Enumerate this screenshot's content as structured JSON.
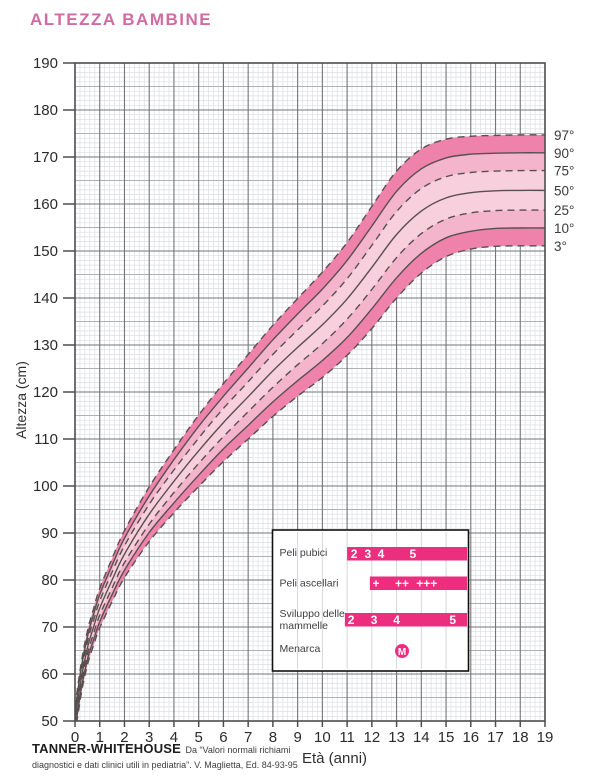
{
  "title": "ALTEZZA BAMBINE",
  "colors": {
    "title": "#d06ba3",
    "band_outer": "#ee82ab",
    "band_mid": "#f3b4cc",
    "band_inner": "#f8cfdd",
    "curve": "#58504f",
    "bar": "#eb2e7e",
    "grid_minor": "#dcdee2",
    "grid_medium": "#aeb1b7",
    "grid_major": "#737578",
    "axis": "#4c4d50",
    "tick_text": "#2b2b2b",
    "label_text": "#3f3f3f",
    "stage_text": "#ffffff"
  },
  "chart_data": {
    "type": "line",
    "title": "ALTEZZA BAMBINE",
    "xlabel": "Età (anni)",
    "ylabel": "Altezza (cm)",
    "xlim": [
      0,
      19
    ],
    "ylim": [
      50,
      190
    ],
    "grid": true,
    "x_ticks": [
      0,
      1,
      2,
      3,
      4,
      5,
      6,
      7,
      8,
      9,
      10,
      11,
      12,
      13,
      14,
      15,
      16,
      17,
      18,
      19
    ],
    "y_ticks": [
      50,
      60,
      70,
      80,
      90,
      100,
      110,
      120,
      130,
      140,
      150,
      160,
      170,
      180,
      190
    ],
    "x": [
      0,
      0.25,
      0.5,
      0.75,
      1,
      1.5,
      2,
      3,
      4,
      5,
      6,
      7,
      8,
      9,
      10,
      11,
      12,
      13,
      14,
      15,
      16,
      17,
      18,
      19
    ],
    "series": [
      {
        "name": "97°",
        "line_style": "dashed",
        "values": [
          53,
          62.3,
          69.1,
          73.9,
          78.2,
          84.6,
          90.5,
          99.8,
          107.7,
          115.1,
          121.8,
          128,
          134.2,
          139.9,
          145.5,
          151.8,
          159.5,
          167,
          171.7,
          173.8,
          174.4,
          174.6,
          174.7,
          174.7
        ]
      },
      {
        "name": "90°",
        "line_style": "solid",
        "values": [
          52,
          61.2,
          67.9,
          72.7,
          76.9,
          83.1,
          88.9,
          97.9,
          105.6,
          112.7,
          119.1,
          125.1,
          131.1,
          136.6,
          141.9,
          148,
          155.3,
          162.7,
          167.5,
          169.8,
          170.6,
          170.8,
          170.9,
          170.9
        ]
      },
      {
        "name": "75°",
        "line_style": "dashed",
        "values": [
          51.1,
          60.2,
          66.8,
          71.4,
          75.5,
          81.7,
          87.3,
          96.1,
          103.4,
          110.2,
          116.5,
          122.2,
          128,
          133.2,
          138.3,
          144.1,
          151.2,
          158.4,
          163.3,
          165.8,
          166.7,
          167,
          167.1,
          167.1
        ]
      },
      {
        "name": "50°",
        "line_style": "solid",
        "values": [
          50,
          59,
          65.5,
          70,
          74,
          80,
          85.5,
          94,
          101,
          107.5,
          113.5,
          119,
          124.5,
          129.5,
          134.3,
          139.8,
          146.5,
          153.5,
          158.5,
          161.3,
          162.4,
          162.8,
          162.9,
          162.9
        ]
      },
      {
        "name": "25°",
        "line_style": "dashed",
        "values": [
          48.9,
          57.8,
          64.2,
          68.6,
          72.5,
          78.3,
          83.7,
          91.9,
          98.6,
          104.8,
          110.5,
          115.8,
          121,
          125.8,
          130.3,
          135.5,
          141.8,
          148.6,
          153.7,
          156.8,
          158.1,
          158.6,
          158.7,
          158.7
        ]
      },
      {
        "name": "10°",
        "line_style": "solid",
        "values": [
          48,
          56.8,
          63.1,
          67.3,
          71.1,
          76.9,
          82.1,
          90.1,
          96.4,
          102.3,
          107.9,
          112.9,
          117.9,
          122.4,
          126.7,
          131.6,
          137.7,
          144.3,
          149.5,
          152.8,
          154.2,
          154.8,
          154.9,
          154.9
        ]
      },
      {
        "name": "3°",
        "line_style": "dashed",
        "values": [
          47,
          55.7,
          61.9,
          66.1,
          69.8,
          75.4,
          80.5,
          88.2,
          94.3,
          99.9,
          105.2,
          110,
          114.8,
          119.1,
          123.1,
          127.8,
          133.5,
          140,
          145.3,
          148.8,
          150.4,
          151,
          151.1,
          151.1
        ]
      }
    ],
    "bands": [
      {
        "upper": "97°",
        "lower": "90°",
        "shade": "band_outer"
      },
      {
        "upper": "90°",
        "lower": "75°",
        "shade": "band_mid"
      },
      {
        "upper": "75°",
        "lower": "25°",
        "shade": "band_inner"
      },
      {
        "upper": "25°",
        "lower": "10°",
        "shade": "band_mid"
      },
      {
        "upper": "10°",
        "lower": "3°",
        "shade": "band_outer"
      }
    ],
    "legend_position": "right"
  },
  "inset": {
    "rows": [
      {
        "label_lines": [
          "Peli pubici"
        ],
        "bar": {
          "from": 11.0,
          "to": 15.85
        },
        "stages": [
          {
            "t": "2",
            "age": 11.28
          },
          {
            "t": "3",
            "age": 11.84
          },
          {
            "t": "4",
            "age": 12.37
          },
          {
            "t": "5",
            "age": 13.66
          }
        ]
      },
      {
        "label_lines": [
          "Peli ascellari"
        ],
        "bar": {
          "from": 11.92,
          "to": 15.85
        },
        "stages": [
          {
            "t": "+",
            "age": 12.17
          },
          {
            "t": "++",
            "age": 13.22
          },
          {
            "t": "+++",
            "age": 14.22
          }
        ]
      },
      {
        "label_lines": [
          "Sviluppo delle",
          "mammelle"
        ],
        "bar": {
          "from": 10.91,
          "to": 15.85
        },
        "stages": [
          {
            "t": "2",
            "age": 11.16
          },
          {
            "t": "3",
            "age": 12.09
          },
          {
            "t": "4",
            "age": 13.0
          },
          {
            "t": "5",
            "age": 15.27
          }
        ]
      },
      {
        "label_lines": [
          "Menarca"
        ],
        "marker": {
          "t": "M",
          "age": 13.22
        }
      }
    ]
  },
  "footer": {
    "source": "TANNER-WHITEHOUSE",
    "ref_line1": "Da “Valori normali richiami",
    "ref_line2": "diagnostici e dati clinici utili in pediatria”. V. Maglietta, Ed. 84-93-95"
  }
}
